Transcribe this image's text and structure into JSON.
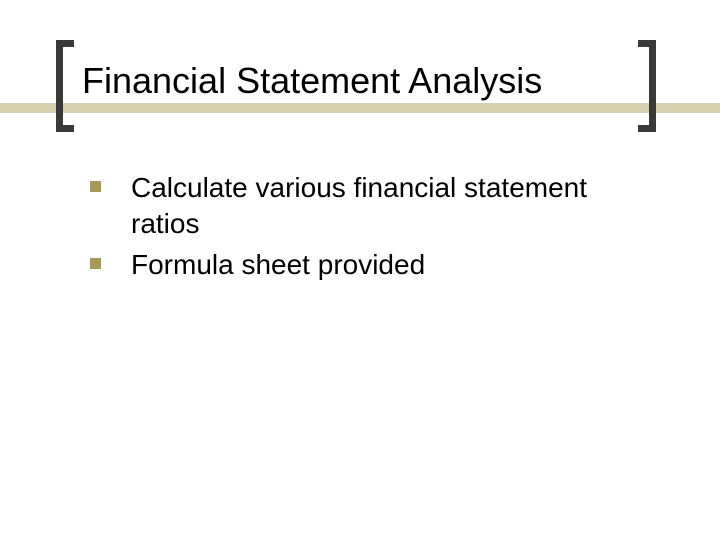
{
  "slide": {
    "title": "Financial Statement Analysis",
    "bullets": [
      "Calculate various financial statement ratios",
      "Formula sheet provided"
    ]
  },
  "style": {
    "background_color": "#ffffff",
    "accent_bar_color": "#d6d0b0",
    "bracket_color": "#3a3a3a",
    "bullet_color": "#a69858",
    "title_fontsize": 36,
    "body_fontsize": 28,
    "title_color": "#000000",
    "text_color": "#000000"
  }
}
